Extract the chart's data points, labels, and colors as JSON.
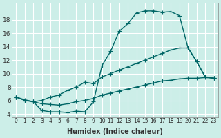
{
  "bg_color": "#cceee8",
  "grid_color": "#ffffff",
  "line_color": "#006666",
  "marker": "+",
  "marker_size": 4,
  "line_width": 1.0,
  "xlabel": "Humidex (Indice chaleur)",
  "xlabel_fontsize": 7,
  "ytick_fontsize": 6.5,
  "xtick_fontsize": 5.5,
  "xlim": [
    -0.5,
    23.5
  ],
  "ylim": [
    3.5,
    20.5
  ],
  "yticks": [
    4,
    6,
    8,
    10,
    12,
    14,
    16,
    18
  ],
  "xticks": [
    0,
    1,
    2,
    3,
    4,
    5,
    6,
    7,
    8,
    9,
    10,
    11,
    12,
    13,
    14,
    15,
    16,
    17,
    18,
    19,
    20,
    21,
    22,
    23
  ],
  "curve1_x": [
    0,
    1,
    2,
    3,
    4,
    5,
    6,
    7,
    8,
    9,
    10,
    11,
    12,
    13,
    14,
    15,
    16,
    17,
    18,
    19,
    20,
    21,
    22,
    23
  ],
  "curve1_y": [
    6.5,
    6.0,
    5.8,
    4.5,
    4.3,
    4.3,
    4.2,
    4.4,
    4.3,
    5.8,
    11.2,
    13.3,
    16.3,
    17.4,
    19.0,
    19.3,
    19.3,
    19.1,
    19.2,
    18.6,
    13.8,
    11.8,
    9.5,
    9.3
  ],
  "curve2_x": [
    0,
    1,
    2,
    3,
    4,
    5,
    6,
    7,
    8,
    9,
    10,
    11,
    12,
    13,
    14,
    15,
    16,
    17,
    18,
    19,
    20,
    21,
    22,
    23
  ],
  "curve2_y": [
    6.5,
    6.1,
    5.8,
    6.0,
    6.5,
    6.8,
    7.5,
    8.0,
    8.7,
    8.5,
    9.5,
    10.0,
    10.5,
    11.0,
    11.5,
    12.0,
    12.5,
    13.0,
    13.5,
    13.8,
    13.8,
    11.8,
    9.5,
    9.3
  ],
  "curve3_x": [
    0,
    1,
    2,
    3,
    4,
    5,
    6,
    7,
    8,
    9,
    10,
    11,
    12,
    13,
    14,
    15,
    16,
    17,
    18,
    19,
    20,
    21,
    22,
    23
  ],
  "curve3_y": [
    6.5,
    6.0,
    5.8,
    5.5,
    5.4,
    5.3,
    5.5,
    5.8,
    6.0,
    6.3,
    6.8,
    7.1,
    7.4,
    7.7,
    8.0,
    8.3,
    8.6,
    8.9,
    9.0,
    9.2,
    9.3,
    9.3,
    9.4,
    9.3
  ]
}
